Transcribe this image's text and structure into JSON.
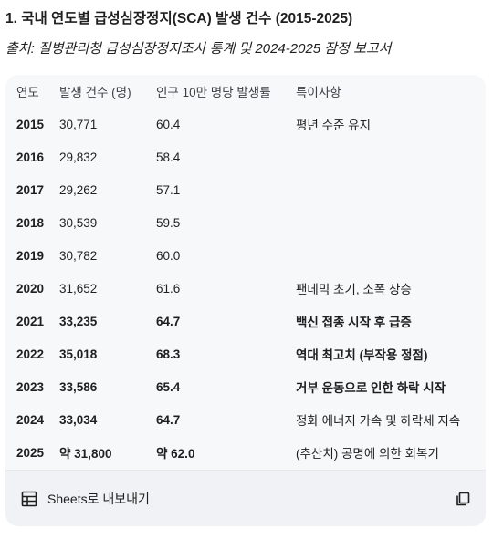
{
  "heading": "1. 국내 연도별 급성심장정지(SCA) 발생 건수 (2015-2025)",
  "source": "출처: 질병관리청 급성심장정지조사 통계 및 2024-2025 잠정 보고서",
  "table": {
    "headers": [
      "연도",
      "발생 건수 (명)",
      "인구 10만 명당 발생률",
      "특이사항"
    ],
    "rows": [
      [
        "2015",
        "30,771",
        "60.4",
        "평년 수준 유지"
      ],
      [
        "2016",
        "29,832",
        "58.4",
        ""
      ],
      [
        "2017",
        "29,262",
        "57.1",
        ""
      ],
      [
        "2018",
        "30,539",
        "59.5",
        ""
      ],
      [
        "2019",
        "30,782",
        "60.0",
        ""
      ],
      [
        "2020",
        "31,652",
        "61.6",
        "팬데믹 초기, 소폭 상승"
      ],
      [
        "2021",
        "33,235",
        "64.7",
        "백신 접종 시작 후 급증"
      ],
      [
        "2022",
        "35,018",
        "68.3",
        "역대 최고치 (부작용 정점)"
      ],
      [
        "2023",
        "33,586",
        "65.4",
        "거부 운동으로 인한 하락 시작"
      ],
      [
        "2024",
        "33,034",
        "64.7",
        "정화 에너지 가속 및 하락세 지속"
      ],
      [
        "2025",
        "약 31,800",
        "약 62.0",
        "(추산치) 공명에 의한 회복기"
      ]
    ]
  },
  "footer": {
    "export_label": "Sheets로 내보내기",
    "export_icon": "table-grid-icon",
    "copy_icon": "copy-icon"
  }
}
